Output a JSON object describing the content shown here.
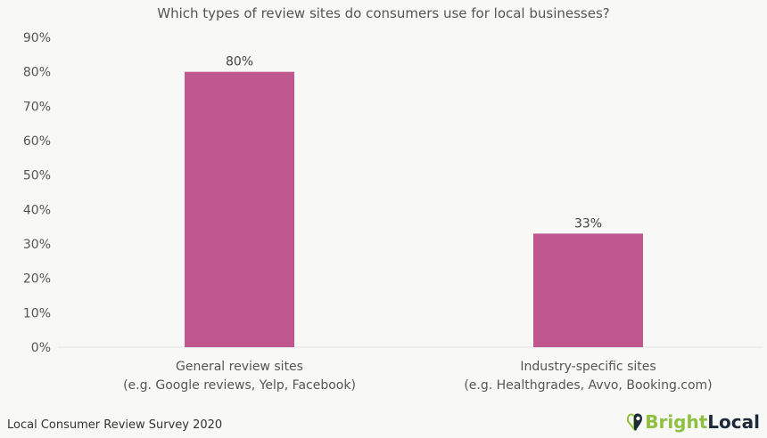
{
  "chart_data": {
    "type": "bar",
    "title": "Which types of review sites do consumers use for local businesses?",
    "categories": [
      [
        "General review sites",
        "(e.g. Google reviews, Yelp, Facebook)"
      ],
      [
        "Industry-specific sites",
        "(e.g. Healthgrades, Avvo, Booking.com)"
      ]
    ],
    "values": [
      80,
      33
    ],
    "data_labels": [
      "80%",
      "33%"
    ],
    "ylim": [
      0,
      90
    ],
    "yticks": [
      "0%",
      "10%",
      "20%",
      "30%",
      "40%",
      "50%",
      "60%",
      "70%",
      "80%",
      "90%"
    ],
    "grid": false,
    "bar_color": "#c0578e"
  },
  "footer": {
    "source": "Local Consumer Review Survey 2020"
  },
  "logo": {
    "part1": "Bright",
    "part2": "Local",
    "color1": "#8fc042",
    "color2": "#1e2a3a"
  }
}
